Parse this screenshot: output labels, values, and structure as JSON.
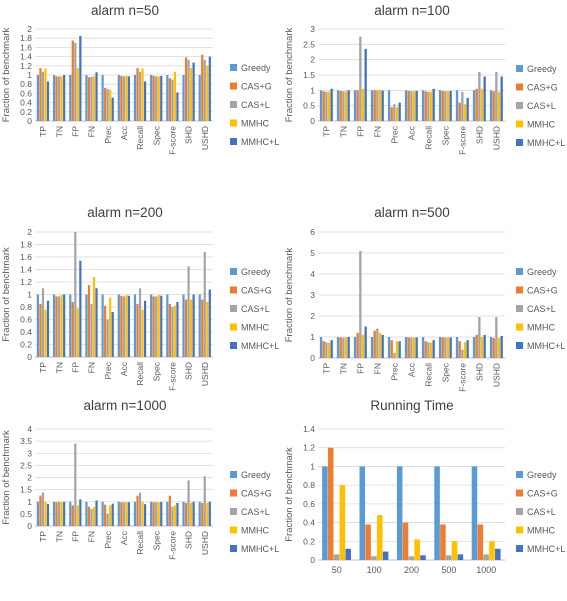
{
  "legend_labels": [
    "Greedy",
    "CAS+G",
    "CAS+L",
    "MMHC",
    "MMHC+L"
  ],
  "colors": {
    "Greedy": "#5b9bd5",
    "CAS+G": "#ed7d31",
    "CAS+L": "#a5a5a5",
    "MMHC": "#ffc000",
    "MMHC+L": "#4472c4",
    "grid": "#d9d9d9",
    "axis_text": "#595959",
    "title_text": "#404040"
  },
  "chart_data": [
    {
      "type": "bar",
      "title": "alarm n=50",
      "ylabel": "Fraction of benchmark",
      "ylim": [
        0,
        2
      ],
      "yticks": [
        "0",
        "0.2",
        "0.4",
        "0.6",
        "0.8",
        "1",
        "1.2",
        "1.4",
        "1.6",
        "1.8",
        "2"
      ],
      "grid": true,
      "legend": "right",
      "categories": [
        "TP",
        "TN",
        "FP",
        "FN",
        "Prec",
        "Acc",
        "Recall",
        "Spec",
        "F-score",
        "SHD",
        "USHD"
      ],
      "series": [
        {
          "name": "Greedy",
          "values": [
            1,
            1,
            1,
            1,
            1,
            1,
            1,
            1,
            1,
            1,
            1
          ]
        },
        {
          "name": "CAS+G",
          "values": [
            1.15,
            0.97,
            1.75,
            0.95,
            0.72,
            0.98,
            1.15,
            0.98,
            0.93,
            1.38,
            1.44
          ]
        },
        {
          "name": "CAS+L",
          "values": [
            1.07,
            0.97,
            1.7,
            0.96,
            0.7,
            0.97,
            1.07,
            0.97,
            0.9,
            1.33,
            1.33
          ]
        },
        {
          "name": "MMHC",
          "values": [
            1.14,
            0.97,
            1.15,
            0.97,
            0.68,
            0.98,
            1.14,
            0.97,
            1.07,
            1.15,
            1.2
          ]
        },
        {
          "name": "MMHC+L",
          "values": [
            0.86,
            1.0,
            1.85,
            1.06,
            0.51,
            0.97,
            0.86,
            0.98,
            0.62,
            1.27,
            1.4
          ]
        }
      ]
    },
    {
      "type": "bar",
      "title": "alarm n=100",
      "ylabel": "Fraction of benchmark",
      "ylim": [
        0,
        3
      ],
      "yticks": [
        "0",
        "0.5",
        "1",
        "1.5",
        "2",
        "2.5",
        "3"
      ],
      "grid": true,
      "legend": "right",
      "categories": [
        "TP",
        "TN",
        "FP",
        "FN",
        "Prec",
        "Acc",
        "Recall",
        "Spec",
        "F-score",
        "SHD",
        "USHD"
      ],
      "series": [
        {
          "name": "Greedy",
          "values": [
            1,
            1,
            1,
            1,
            1,
            1,
            1,
            1,
            1,
            1,
            1
          ]
        },
        {
          "name": "CAS+G",
          "values": [
            0.97,
            0.98,
            1.0,
            1.0,
            0.45,
            0.98,
            0.97,
            0.98,
            0.6,
            1.05,
            0.97
          ]
        },
        {
          "name": "CAS+L",
          "values": [
            0.95,
            0.97,
            2.75,
            1.0,
            0.55,
            0.97,
            0.95,
            0.97,
            0.95,
            1.6,
            1.6
          ]
        },
        {
          "name": "MMHC",
          "values": [
            0.96,
            0.97,
            1.05,
            1.02,
            0.45,
            0.97,
            0.96,
            0.97,
            0.55,
            1.05,
            0.95
          ]
        },
        {
          "name": "MMHC+L",
          "values": [
            1.05,
            1.0,
            2.35,
            0.99,
            0.6,
            0.98,
            1.05,
            0.98,
            0.75,
            1.45,
            1.45
          ]
        }
      ]
    },
    {
      "type": "bar",
      "title": "alarm n=200",
      "ylabel": "Fraction of benchmark",
      "ylim": [
        0,
        2
      ],
      "yticks": [
        "0",
        "0.2",
        "0.4",
        "0.6",
        "0.8",
        "1",
        "1.2",
        "1.4",
        "1.6",
        "1.8",
        "2"
      ],
      "grid": true,
      "legend": "right",
      "categories": [
        "TP",
        "TN",
        "FP",
        "FN",
        "Prec",
        "Acc",
        "Recall",
        "Spec",
        "F-score",
        "SHD",
        "USHD"
      ],
      "series": [
        {
          "name": "Greedy",
          "values": [
            1,
            1,
            1,
            1,
            1,
            1,
            1,
            1,
            1,
            1,
            1
          ]
        },
        {
          "name": "CAS+G",
          "values": [
            0.85,
            0.97,
            0.88,
            1.15,
            0.82,
            0.98,
            0.85,
            0.97,
            0.85,
            0.92,
            0.92
          ]
        },
        {
          "name": "CAS+L",
          "values": [
            1.1,
            0.97,
            2.0,
            0.85,
            0.6,
            0.97,
            1.1,
            0.97,
            0.8,
            1.45,
            1.68
          ]
        },
        {
          "name": "MMHC",
          "values": [
            0.76,
            0.99,
            0.78,
            1.28,
            0.95,
            0.99,
            0.76,
            0.99,
            0.82,
            0.92,
            0.88
          ]
        },
        {
          "name": "MMHC+L",
          "values": [
            0.9,
            1.0,
            1.54,
            1.1,
            0.72,
            0.98,
            0.9,
            0.98,
            0.88,
            1.0,
            1.08
          ]
        }
      ]
    },
    {
      "type": "bar",
      "title": "alarm n=500",
      "ylabel": "Fraction of benchmark",
      "ylim": [
        0,
        6
      ],
      "yticks": [
        "0",
        "1",
        "2",
        "3",
        "4",
        "5",
        "6"
      ],
      "grid": true,
      "legend": "right",
      "categories": [
        "TP",
        "TN",
        "FP",
        "FN",
        "Prec",
        "Acc",
        "Recall",
        "Spec",
        "F-score",
        "SHD",
        "USHD"
      ],
      "series": [
        {
          "name": "Greedy",
          "values": [
            1,
            1,
            1,
            1,
            1,
            1,
            1,
            1,
            1,
            1,
            1
          ]
        },
        {
          "name": "CAS+G",
          "values": [
            0.8,
            0.98,
            1.2,
            1.3,
            0.85,
            0.98,
            0.8,
            0.98,
            0.8,
            1.1,
            0.95
          ]
        },
        {
          "name": "CAS+L",
          "values": [
            0.75,
            0.97,
            5.1,
            1.4,
            0.25,
            0.97,
            0.75,
            0.97,
            0.4,
            1.95,
            1.95
          ]
        },
        {
          "name": "MMHC",
          "values": [
            0.72,
            0.98,
            1.1,
            1.2,
            0.8,
            0.98,
            0.72,
            0.98,
            0.75,
            1.0,
            0.95
          ]
        },
        {
          "name": "MMHC+L",
          "values": [
            0.85,
            1.0,
            1.5,
            1.1,
            0.8,
            0.98,
            0.85,
            0.98,
            0.85,
            1.1,
            1.05
          ]
        }
      ]
    },
    {
      "type": "bar",
      "title": "alarm n=1000",
      "ylabel": "Fraction of benchmark",
      "ylim": [
        0,
        4
      ],
      "yticks": [
        "0",
        "0.5",
        "1",
        "1.5",
        "2",
        "2.5",
        "3",
        "3.5",
        "4"
      ],
      "grid": true,
      "legend": "right",
      "categories": [
        "TP",
        "TN",
        "FP",
        "FN",
        "Prec",
        "Acc",
        "Recall",
        "Spec",
        "F-score",
        "SHD",
        "USHD"
      ],
      "series": [
        {
          "name": "Greedy",
          "values": [
            1,
            1,
            1,
            1,
            1,
            1,
            1,
            1,
            1,
            1,
            1
          ]
        },
        {
          "name": "CAS+G",
          "values": [
            1.25,
            0.98,
            0.85,
            0.8,
            0.88,
            0.98,
            1.25,
            0.98,
            1.25,
            0.95,
            0.95
          ]
        },
        {
          "name": "CAS+L",
          "values": [
            1.38,
            1.0,
            3.4,
            0.7,
            0.5,
            0.98,
            1.38,
            0.98,
            0.8,
            1.88,
            2.05
          ]
        },
        {
          "name": "MMHC",
          "values": [
            1.0,
            0.98,
            0.85,
            0.78,
            0.85,
            0.99,
            1.0,
            0.98,
            0.85,
            0.95,
            0.95
          ]
        },
        {
          "name": "MMHC+L",
          "values": [
            0.9,
            1.0,
            1.1,
            1.05,
            0.92,
            0.98,
            0.9,
            0.99,
            0.95,
            1.0,
            1.0
          ]
        }
      ]
    },
    {
      "type": "bar",
      "title": "Running Time",
      "ylabel": "Fraction of benchmark",
      "ylim": [
        0,
        1.4
      ],
      "yticks": [
        "0",
        "0.2",
        "0.4",
        "0.6",
        "0.8",
        "1",
        "1.2",
        "1.4"
      ],
      "grid": true,
      "legend": "right",
      "categories": [
        "50",
        "100",
        "200",
        "500",
        "1000"
      ],
      "series": [
        {
          "name": "Greedy",
          "values": [
            1,
            1,
            1,
            1,
            1
          ]
        },
        {
          "name": "CAS+G",
          "values": [
            1.2,
            0.38,
            0.4,
            0.38,
            0.38
          ]
        },
        {
          "name": "CAS+L",
          "values": [
            0.06,
            0.04,
            0.04,
            0.05,
            0.06
          ]
        },
        {
          "name": "MMHC",
          "values": [
            0.8,
            0.48,
            0.22,
            0.2,
            0.2
          ]
        },
        {
          "name": "MMHC+L",
          "values": [
            0.12,
            0.09,
            0.05,
            0.06,
            0.12
          ]
        }
      ]
    }
  ]
}
